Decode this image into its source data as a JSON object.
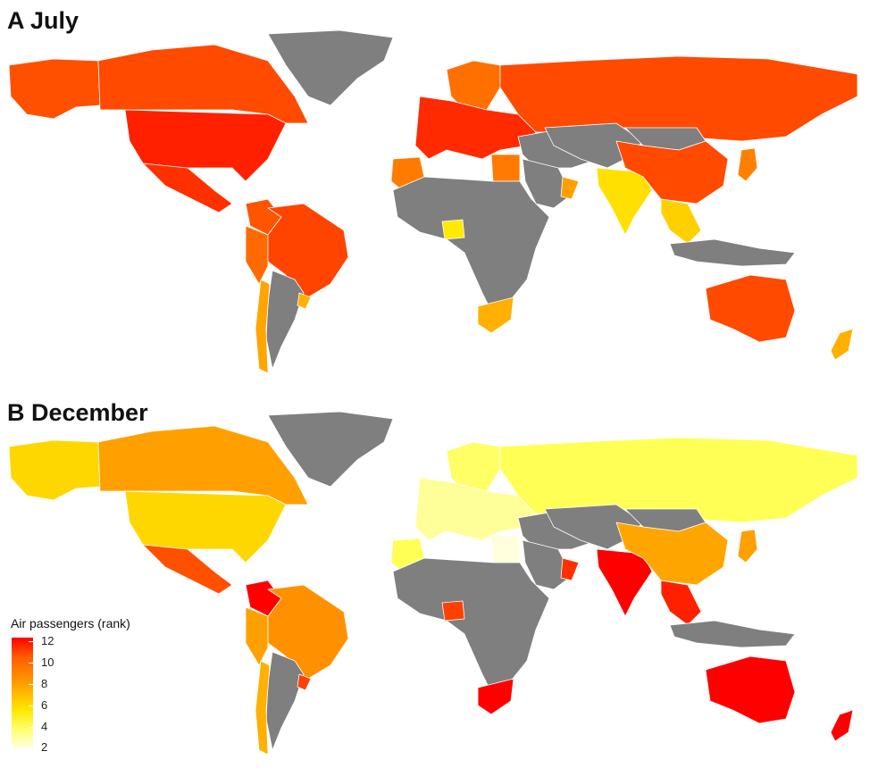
{
  "panels": [
    {
      "id": "A",
      "title": "A July"
    },
    {
      "id": "B",
      "title": "B December"
    }
  ],
  "legend": {
    "title": "Air passengers (rank)",
    "ticks": [
      "12",
      "10",
      "8",
      "6",
      "4",
      "2"
    ]
  },
  "colors": {
    "no_data": "#7f7f7f",
    "rank_2": "#ffffdd",
    "rank_4": "#ffff55",
    "rank_6": "#ffd700",
    "rank_8": "#ffa500",
    "rank_10": "#ff5a00",
    "rank_12": "#ff0000"
  },
  "july": {
    "russia": "#ff4a00",
    "canada": "#ff4a00",
    "alaska": "#ff5000",
    "usa": "#ff2000",
    "mexico": "#ff3000",
    "brazil": "#ff4400",
    "colombia": "#ff5500",
    "peru": "#ff6a00",
    "chile": "#ffa500",
    "argentina": "#7f7f7f",
    "uruguay": "#ffb000",
    "greenland": "#7f7f7f",
    "europe": "#ff2a00",
    "scandinavia": "#ff7000",
    "morocco": "#ff7a00",
    "egypt": "#ff7a00",
    "africa": "#7f7f7f",
    "nigeria": "#ffea00",
    "south_africa": "#ffb000",
    "middle_east": "#7f7f7f",
    "arabia": "#7f7f7f",
    "oman": "#ffa000",
    "central_asia": "#7f7f7f",
    "india": "#ffe000",
    "china": "#ff4a00",
    "mongolia": "#7f7f7f",
    "japan": "#ff8000",
    "se_asia": "#ffd000",
    "indonesia": "#7f7f7f",
    "australia": "#ff4a00",
    "new_zealand": "#ffb000"
  },
  "december": {
    "russia": "#ffff55",
    "canada": "#ffa000",
    "alaska": "#ffd700",
    "usa": "#ffd700",
    "mexico": "#ff5000",
    "brazil": "#ff9000",
    "colombia": "#ff0000",
    "peru": "#ffa000",
    "chile": "#ffb000",
    "argentina": "#7f7f7f",
    "uruguay": "#ff4000",
    "greenland": "#7f7f7f",
    "europe": "#ffff99",
    "scandinavia": "#ffff66",
    "morocco": "#ffff55",
    "egypt": "#ffffdd",
    "africa": "#7f7f7f",
    "nigeria": "#ff4000",
    "south_africa": "#ff0000",
    "middle_east": "#7f7f7f",
    "arabia": "#7f7f7f",
    "oman": "#ff3000",
    "central_asia": "#7f7f7f",
    "india": "#ff0000",
    "china": "#ffa500",
    "mongolia": "#7f7f7f",
    "japan": "#ffa000",
    "se_asia": "#ff2000",
    "indonesia": "#7f7f7f",
    "australia": "#ff0000",
    "new_zealand": "#ff0000"
  }
}
